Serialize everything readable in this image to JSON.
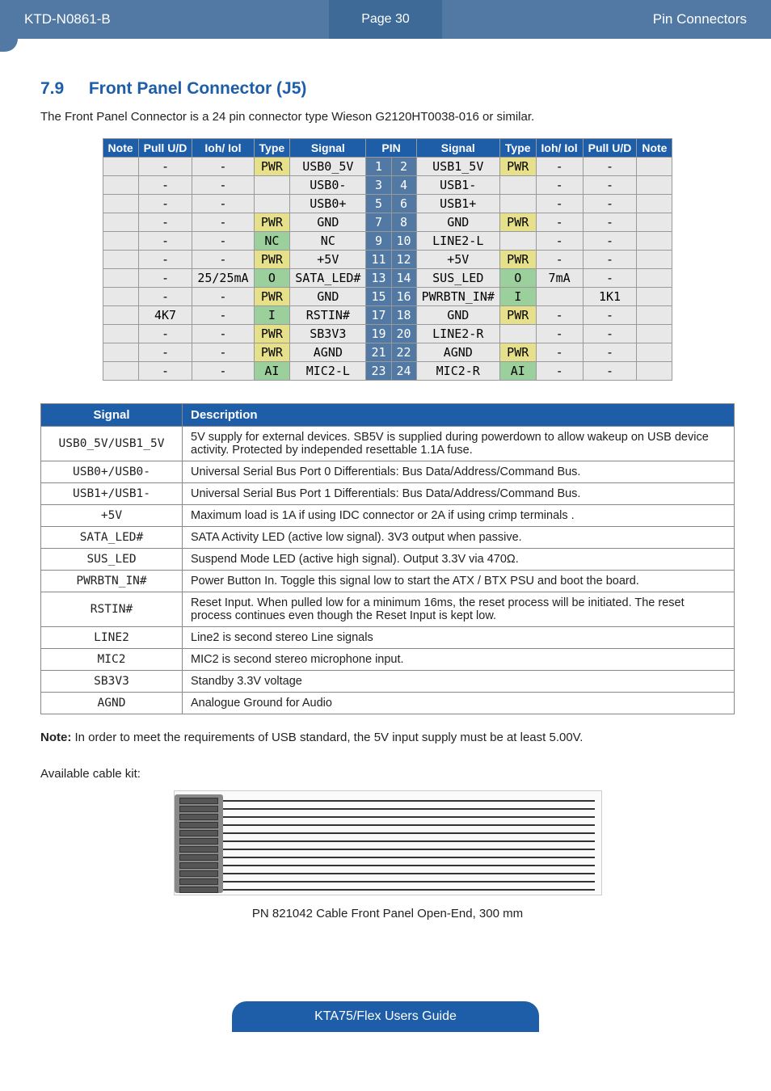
{
  "header": {
    "doc_id": "KTD-N0861-B",
    "page": "Page 30",
    "section": "Pin Connectors"
  },
  "title": {
    "num": "7.9",
    "text": "Front Panel Connector (J5)"
  },
  "intro": "The Front Panel Connector is a 24 pin connector type Wieson G2120HT0038-016 or similar.",
  "pins": {
    "headers": [
      "Note",
      "Pull U/D",
      "Ioh/ Iol",
      "Type",
      "Signal",
      "PIN",
      "Signal",
      "Type",
      "Ioh/ Iol",
      "Pull U/D",
      "Note"
    ],
    "rows": [
      {
        "l": {
          "note": "",
          "pull": "-",
          "ioh": "-",
          "type": "PWR",
          "type_c": "yel",
          "sig": "USB0_5V"
        },
        "p1": "1",
        "p2": "2",
        "r": {
          "sig": "USB1_5V",
          "type": "PWR",
          "type_c": "yel",
          "ioh": "-",
          "pull": "-",
          "note": ""
        }
      },
      {
        "l": {
          "note": "",
          "pull": "-",
          "ioh": "-",
          "type": "",
          "type_c": "",
          "sig": "USB0-"
        },
        "p1": "3",
        "p2": "4",
        "r": {
          "sig": "USB1-",
          "type": "",
          "type_c": "",
          "ioh": "-",
          "pull": "-",
          "note": ""
        }
      },
      {
        "l": {
          "note": "",
          "pull": "-",
          "ioh": "-",
          "type": "",
          "type_c": "",
          "sig": "USB0+"
        },
        "p1": "5",
        "p2": "6",
        "r": {
          "sig": "USB1+",
          "type": "",
          "type_c": "",
          "ioh": "-",
          "pull": "-",
          "note": ""
        }
      },
      {
        "l": {
          "note": "",
          "pull": "-",
          "ioh": "-",
          "type": "PWR",
          "type_c": "yel",
          "sig": "GND"
        },
        "p1": "7",
        "p2": "8",
        "r": {
          "sig": "GND",
          "type": "PWR",
          "type_c": "yel",
          "ioh": "-",
          "pull": "-",
          "note": ""
        }
      },
      {
        "l": {
          "note": "",
          "pull": "-",
          "ioh": "-",
          "type": "NC",
          "type_c": "grn",
          "sig": "NC"
        },
        "p1": "9",
        "p2": "10",
        "r": {
          "sig": "LINE2-L",
          "type": "",
          "type_c": "",
          "ioh": "-",
          "pull": "-",
          "note": ""
        }
      },
      {
        "l": {
          "note": "",
          "pull": "-",
          "ioh": "-",
          "type": "PWR",
          "type_c": "yel",
          "sig": "+5V"
        },
        "p1": "11",
        "p2": "12",
        "r": {
          "sig": "+5V",
          "type": "PWR",
          "type_c": "yel",
          "ioh": "-",
          "pull": "-",
          "note": ""
        }
      },
      {
        "l": {
          "note": "",
          "pull": "-",
          "ioh": "25/25mA",
          "type": "O",
          "type_c": "grn",
          "sig": "SATA_LED#"
        },
        "p1": "13",
        "p2": "14",
        "r": {
          "sig": "SUS_LED",
          "type": "O",
          "type_c": "grn",
          "ioh": "7mA",
          "pull": "-",
          "note": ""
        }
      },
      {
        "l": {
          "note": "",
          "pull": "-",
          "ioh": "-",
          "type": "PWR",
          "type_c": "yel",
          "sig": "GND"
        },
        "p1": "15",
        "p2": "16",
        "r": {
          "sig": "PWRBTN_IN#",
          "type": "I",
          "type_c": "grn",
          "ioh": "",
          "pull": "1K1",
          "note": ""
        }
      },
      {
        "l": {
          "note": "",
          "pull": "4K7",
          "ioh": "-",
          "type": "I",
          "type_c": "grn",
          "sig": "RSTIN#"
        },
        "p1": "17",
        "p2": "18",
        "r": {
          "sig": "GND",
          "type": "PWR",
          "type_c": "yel",
          "ioh": "-",
          "pull": "-",
          "note": ""
        }
      },
      {
        "l": {
          "note": "",
          "pull": "-",
          "ioh": "-",
          "type": "PWR",
          "type_c": "yel",
          "sig": "SB3V3"
        },
        "p1": "19",
        "p2": "20",
        "r": {
          "sig": "LINE2-R",
          "type": "",
          "type_c": "",
          "ioh": "-",
          "pull": "-",
          "note": ""
        }
      },
      {
        "l": {
          "note": "",
          "pull": "-",
          "ioh": "-",
          "type": "PWR",
          "type_c": "yel",
          "sig": "AGND"
        },
        "p1": "21",
        "p2": "22",
        "r": {
          "sig": "AGND",
          "type": "PWR",
          "type_c": "yel",
          "ioh": "-",
          "pull": "-",
          "note": ""
        }
      },
      {
        "l": {
          "note": "",
          "pull": "-",
          "ioh": "-",
          "type": "AI",
          "type_c": "grn",
          "sig": "MIC2-L"
        },
        "p1": "23",
        "p2": "24",
        "r": {
          "sig": "MIC2-R",
          "type": "AI",
          "type_c": "grn",
          "ioh": "-",
          "pull": "-",
          "note": ""
        }
      }
    ]
  },
  "desc": {
    "headers": [
      "Signal",
      "Description"
    ],
    "rows": [
      [
        "USB0_5V/USB1_5V",
        "5V supply for external devices.  SB5V is supplied during powerdown to allow wakeup on USB device activity. Protected by independed resettable 1.1A fuse."
      ],
      [
        "USB0+/USB0-",
        "Universal Serial Bus Port 0 Differentials: Bus Data/Address/Command Bus."
      ],
      [
        "USB1+/USB1-",
        "Universal Serial Bus Port 1 Differentials: Bus Data/Address/Command Bus."
      ],
      [
        "+5V",
        "Maximum load is 1A if using IDC connector or 2A if using crimp terminals ."
      ],
      [
        "SATA_LED#",
        "SATA Activity LED (active low signal). 3V3 output when passive."
      ],
      [
        "SUS_LED",
        "Suspend Mode LED (active high signal). Output 3.3V via 470Ω."
      ],
      [
        "PWRBTN_IN#",
        "Power Button In. Toggle this signal low to start the ATX / BTX PSU and boot the board."
      ],
      [
        "RSTIN#",
        "Reset Input. When pulled low for a minimum 16ms, the reset process will be initiated. The reset process continues even though the Reset Input is kept low."
      ],
      [
        "LINE2",
        "Line2 is second stereo Line signals"
      ],
      [
        "MIC2",
        "MIC2 is second stereo microphone input."
      ],
      [
        "SB3V3",
        "Standby 3.3V voltage"
      ],
      [
        "AGND",
        "Analogue Ground for Audio"
      ]
    ]
  },
  "note_label": "Note:",
  "note_text": " In order to meet the requirements of USB standard, the 5V input supply must be at least 5.00V.",
  "avail": "Available cable kit:",
  "caption": "PN 821042 Cable Front Panel Open-End, 300 mm",
  "footer": "KTA75/Flex Users Guide"
}
